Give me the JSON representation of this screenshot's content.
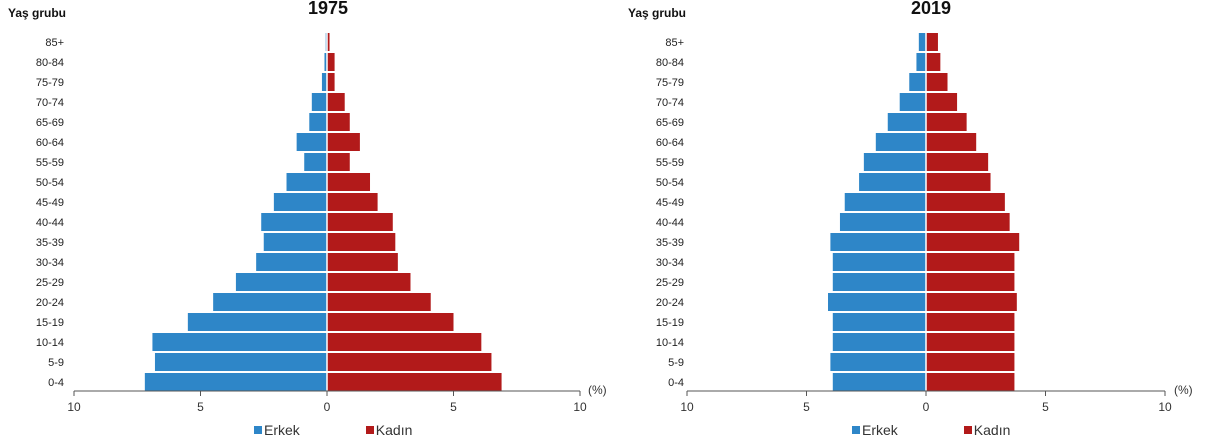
{
  "colors": {
    "male": "#2e86c8",
    "female": "#b21a1a"
  },
  "legend": {
    "male": "Erkek",
    "female": "Kadın"
  },
  "chart_data": [
    {
      "type": "bar",
      "orientation": "horizontal-population-pyramid",
      "title": "1975",
      "ylabel": "Yaş grubu",
      "xlabel": "(%)",
      "xlim": [
        -10,
        10
      ],
      "xticks": [
        "10",
        "5",
        "0",
        "5",
        "10"
      ],
      "categories": [
        "0-4",
        "5-9",
        "10-14",
        "15-19",
        "20-24",
        "25-29",
        "30-34",
        "35-39",
        "40-44",
        "45-49",
        "50-54",
        "55-59",
        "60-64",
        "65-69",
        "70-74",
        "75-79",
        "80-84",
        "85+"
      ],
      "series": [
        {
          "name": "Erkek",
          "values": [
            7.2,
            6.8,
            6.9,
            5.5,
            4.5,
            3.6,
            2.8,
            2.5,
            2.6,
            2.1,
            1.6,
            0.9,
            1.2,
            0.7,
            0.6,
            0.2,
            0.1,
            0.05
          ]
        },
        {
          "name": "Kadın",
          "values": [
            6.9,
            6.5,
            6.1,
            5.0,
            4.1,
            3.3,
            2.8,
            2.7,
            2.6,
            2.0,
            1.7,
            0.9,
            1.3,
            0.9,
            0.7,
            0.3,
            0.3,
            0.1
          ]
        }
      ]
    },
    {
      "type": "bar",
      "orientation": "horizontal-population-pyramid",
      "title": "2019",
      "ylabel": "Yaş grubu",
      "xlabel": "(%)",
      "xlim": [
        -10,
        10
      ],
      "xticks": [
        "10",
        "5",
        "0",
        "5",
        "10"
      ],
      "categories": [
        "0-4",
        "5-9",
        "10-14",
        "15-19",
        "20-24",
        "25-29",
        "30-34",
        "35-39",
        "40-44",
        "45-49",
        "50-54",
        "55-59",
        "60-64",
        "65-69",
        "70-74",
        "75-79",
        "80-84",
        "85+"
      ],
      "series": [
        {
          "name": "Erkek",
          "values": [
            3.9,
            4.0,
            3.9,
            3.9,
            4.1,
            3.9,
            3.9,
            4.0,
            3.6,
            3.4,
            2.8,
            2.6,
            2.1,
            1.6,
            1.1,
            0.7,
            0.4,
            0.3
          ]
        },
        {
          "name": "Kadın",
          "values": [
            3.7,
            3.7,
            3.7,
            3.7,
            3.8,
            3.7,
            3.7,
            3.9,
            3.5,
            3.3,
            2.7,
            2.6,
            2.1,
            1.7,
            1.3,
            0.9,
            0.6,
            0.5
          ]
        }
      ]
    }
  ]
}
